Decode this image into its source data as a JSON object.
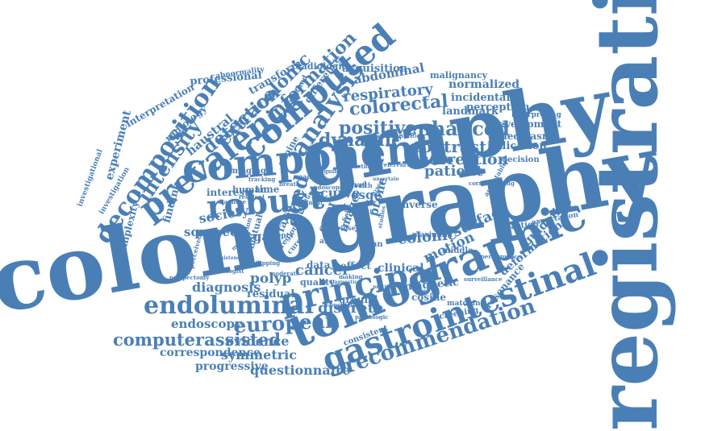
{
  "palette": {
    "word_color": "#4a7fb6",
    "background": "#ffffff"
  },
  "words": [
    {
      "id": "colonography",
      "text": "colonography",
      "rank": "largest"
    },
    {
      "id": "registration",
      "text": "registration",
      "rank": "largest"
    },
    {
      "id": "graphy",
      "text": "graphy",
      "rank": "large"
    },
    {
      "id": "component",
      "text": "component",
      "rank": "large"
    },
    {
      "id": "tomographic",
      "text": "tomographic",
      "rank": "large"
    },
    {
      "id": "principal",
      "text": "principal",
      "rank": "large"
    },
    {
      "id": "gastrointestinal",
      "text": "gastrointestinal",
      "rank": "large"
    },
    {
      "id": "endoluminal",
      "text": "endoluminal",
      "rank": "large"
    },
    {
      "id": "computed",
      "text": "computed",
      "rank": "large"
    },
    {
      "id": "prevalence",
      "text": "prevalence",
      "rank": "large"
    },
    {
      "id": "robust",
      "text": "robust",
      "rank": "large"
    },
    {
      "id": "analysis",
      "text": "analysis",
      "rank": "medium"
    },
    {
      "id": "decomposition",
      "text": "decomposition",
      "rank": "medium"
    },
    {
      "id": "european",
      "text": "european",
      "rank": "medium"
    },
    {
      "id": "recommendation",
      "text": "recommendation",
      "rank": "medium"
    },
    {
      "id": "computerassisted",
      "text": "computerassisted",
      "rank": "medium"
    },
    {
      "id": "dynamic",
      "text": "dynamic",
      "rank": "medium"
    },
    {
      "id": "colorectal",
      "text": "colorectal",
      "rank": "medium"
    },
    {
      "id": "positive",
      "text": "positive",
      "rank": "medium"
    },
    {
      "id": "enhanced",
      "text": "enhanced",
      "rank": "medium"
    },
    {
      "id": "contrast",
      "text": "contrast",
      "rank": "medium"
    },
    {
      "id": "correction",
      "text": "correction",
      "rank": "medium"
    },
    {
      "id": "patient",
      "text": "patient",
      "rank": "medium"
    },
    {
      "id": "intensity",
      "text": "intensity",
      "rank": "medium"
    },
    {
      "id": "detection",
      "text": "detection",
      "rank": "medium"
    },
    {
      "id": "extracolonic",
      "text": "extracolonic",
      "rank": "medium"
    },
    {
      "id": "information",
      "text": "information",
      "rank": "medium"
    },
    {
      "id": "respiratory",
      "text": "respiratory",
      "rank": "medium"
    },
    {
      "id": "abdominal",
      "text": "abdominal",
      "rank": "small"
    },
    {
      "id": "normalized",
      "text": "normalized",
      "rank": "small"
    },
    {
      "id": "incidental",
      "text": "incidental",
      "rank": "small"
    },
    {
      "id": "landmark",
      "text": "landmark",
      "rank": "small"
    },
    {
      "id": "perception",
      "text": "perception",
      "rank": "small"
    },
    {
      "id": "malignancy",
      "text": "malignancy",
      "rank": "small"
    },
    {
      "id": "acquisition",
      "text": "acquisition",
      "rank": "small"
    },
    {
      "id": "radiologic",
      "text": "radiologic",
      "rank": "small"
    },
    {
      "id": "difference",
      "text": "difference",
      "rank": "small"
    },
    {
      "id": "transform",
      "text": "transform",
      "rank": "small"
    },
    {
      "id": "haustral",
      "text": "haustral",
      "rank": "small"
    },
    {
      "id": "professional",
      "text": "professional",
      "rank": "small"
    },
    {
      "id": "abnormality",
      "text": "abnormality",
      "rank": "tiny"
    },
    {
      "id": "interpretation",
      "text": "interpretation",
      "rank": "small"
    },
    {
      "id": "radiology",
      "text": "radiology",
      "rank": "small"
    },
    {
      "id": "experiment",
      "text": "experiment",
      "rank": "small"
    },
    {
      "id": "investigational",
      "text": "investigational",
      "rank": "tiny"
    },
    {
      "id": "investigation",
      "text": "investigation",
      "rank": "tiny"
    },
    {
      "id": "complexity",
      "text": "complexity",
      "rank": "small"
    },
    {
      "id": "finding",
      "text": "finding",
      "rank": "small"
    },
    {
      "id": "society",
      "text": "society",
      "rank": "small"
    },
    {
      "id": "squared",
      "text": "squared",
      "rank": "small"
    },
    {
      "id": "interest",
      "text": "interest",
      "rank": "small"
    },
    {
      "id": "human",
      "text": "human",
      "rank": "small"
    },
    {
      "id": "time",
      "text": "time",
      "rank": "small"
    },
    {
      "id": "esgar",
      "text": "esgar",
      "rank": "small"
    },
    {
      "id": "false",
      "text": "false",
      "rank": "small"
    },
    {
      "id": "aged",
      "text": "aged",
      "rank": "medium"
    },
    {
      "id": "curve",
      "text": "curve",
      "rank": "small"
    },
    {
      "id": "esge",
      "text": "esge",
      "rank": "small"
    },
    {
      "id": "cancer",
      "text": "cancer",
      "rank": "medium"
    },
    {
      "id": "colonic",
      "text": "colonic",
      "rank": "medium"
    },
    {
      "id": "surface",
      "text": "surface",
      "rank": "medium"
    },
    {
      "id": "motion",
      "text": "motion",
      "rank": "medium"
    },
    {
      "id": "clinical",
      "text": "clinical",
      "rank": "small"
    },
    {
      "id": "magnetic",
      "text": "magnetic",
      "rank": "small"
    },
    {
      "id": "deformation",
      "text": "deformation",
      "rank": "small"
    },
    {
      "id": "guideline",
      "text": "guideline",
      "rank": "small"
    },
    {
      "id": "resonance",
      "text": "resonance",
      "rank": "small"
    },
    {
      "id": "reaction",
      "text": "reaction",
      "rank": "tiny"
    },
    {
      "id": "expectation",
      "text": "expectation",
      "rank": "tiny"
    },
    {
      "id": "indication",
      "text": "indication",
      "rank": "small"
    },
    {
      "id": "development",
      "text": "development",
      "rank": "small"
    },
    {
      "id": "neoplasm",
      "text": "neoplasm",
      "rank": "small"
    },
    {
      "id": "decision",
      "text": "decision",
      "rank": "tiny"
    },
    {
      "id": "interpreting",
      "text": "interpreting",
      "rank": "tiny"
    },
    {
      "id": "diagnosis",
      "text": "diagnosis",
      "rank": "medium"
    },
    {
      "id": "polyp",
      "text": "polyp",
      "rank": "medium"
    },
    {
      "id": "residual",
      "text": "residual",
      "rank": "small"
    },
    {
      "id": "data",
      "text": "data",
      "rank": "small"
    },
    {
      "id": "quality",
      "text": "quality",
      "rank": "small"
    },
    {
      "id": "effect",
      "text": "effect",
      "rank": "small"
    },
    {
      "id": "discrete",
      "text": "discrete",
      "rank": "medium"
    },
    {
      "id": "ground",
      "text": "ground",
      "rank": "small"
    },
    {
      "id": "endoscopy",
      "text": "endoscopy",
      "rank": "small"
    },
    {
      "id": "evidence",
      "text": "evidence",
      "rank": "small"
    },
    {
      "id": "symmetric",
      "text": "symmetric",
      "rank": "small"
    },
    {
      "id": "correspondence",
      "text": "correspondence",
      "rank": "small"
    },
    {
      "id": "progressive",
      "text": "progressive",
      "rank": "small"
    },
    {
      "id": "questionnaire",
      "text": "questionnaire",
      "rank": "small"
    },
    {
      "id": "consistent",
      "text": "consistent",
      "rank": "tiny"
    },
    {
      "id": "screening",
      "text": "screening",
      "rank": "tiny"
    },
    {
      "id": "matching",
      "text": "matching",
      "rank": "tiny"
    },
    {
      "id": "cosine",
      "text": "cosine",
      "rank": "small"
    },
    {
      "id": "inverse",
      "text": "inverse",
      "rank": "small"
    },
    {
      "id": "maximum",
      "text": "maximum",
      "rank": "tiny"
    },
    {
      "id": "middle",
      "text": "middle",
      "rank": "tiny"
    },
    {
      "id": "imaging",
      "text": "imaging",
      "rank": "tiny"
    },
    {
      "id": "supine",
      "text": "supine",
      "rank": "small"
    },
    {
      "id": "method",
      "text": "method",
      "rank": "tiny"
    },
    {
      "id": "mutual",
      "text": "mutual",
      "rank": "tiny"
    },
    {
      "id": "novel",
      "text": "novel",
      "rank": "tiny"
    },
    {
      "id": "error",
      "text": "error",
      "rank": "small"
    },
    {
      "id": "image",
      "text": "image",
      "rank": "small"
    },
    {
      "id": "prone",
      "text": "prone",
      "rank": "small"
    },
    {
      "id": "area",
      "text": "area",
      "rank": "tiny"
    },
    {
      "id": "mean",
      "text": "mean",
      "rank": "tiny"
    },
    {
      "id": "visual",
      "text": "visual",
      "rank": "tiny"
    },
    {
      "id": "reader",
      "text": "reader",
      "rank": "tiny"
    },
    {
      "id": "significant",
      "text": "significant",
      "rank": "tiny"
    },
    {
      "id": "reduction",
      "text": "reduction",
      "rank": "tiny"
    },
    {
      "id": "reference",
      "text": "reference",
      "rank": "tiny"
    },
    {
      "id": "technique",
      "text": "technique",
      "rank": "tiny"
    },
    {
      "id": "identification",
      "text": "identification",
      "rank": "tiny"
    },
    {
      "id": "corresponding",
      "text": "corresponding",
      "rank": "tiny"
    },
    {
      "id": "health",
      "text": "health",
      "rank": "tiny"
    },
    {
      "id": "strong",
      "text": "strong",
      "rank": "tiny"
    },
    {
      "id": "diagnose",
      "text": "diagnose",
      "rank": "tiny"
    },
    {
      "id": "rate",
      "text": "rate",
      "rank": "tiny"
    },
    {
      "id": "rinse",
      "text": "rinse",
      "rank": "tiny"
    },
    {
      "id": "field",
      "text": "field",
      "rank": "tiny"
    },
    {
      "id": "truth",
      "text": "truth",
      "rank": "tiny"
    },
    {
      "id": "region",
      "text": "region",
      "rank": "tiny"
    },
    {
      "id": "application",
      "text": "application",
      "rank": "tiny"
    },
    {
      "id": "medical",
      "text": "medical",
      "rank": "tiny"
    },
    {
      "id": "flipping",
      "text": "flipping",
      "rank": "tiny"
    },
    {
      "id": "moderate",
      "text": "moderate",
      "rank": "tiny"
    },
    {
      "id": "perceived",
      "text": "perceived",
      "rank": "tiny"
    },
    {
      "id": "polypectomy",
      "text": "polypectomy",
      "rank": "tiny"
    },
    {
      "id": "radiologist",
      "text": "radiologist",
      "rank": "tiny"
    },
    {
      "id": "consistency",
      "text": "consistency",
      "rank": "tiny"
    },
    {
      "id": "making",
      "text": "making",
      "rank": "tiny"
    },
    {
      "id": "conclusion",
      "text": "conclusion",
      "rank": "tiny"
    },
    {
      "id": "pathologic",
      "text": "pathologic",
      "rank": "tiny"
    },
    {
      "id": "practice",
      "text": "practice",
      "rank": "tiny"
    },
    {
      "id": "surveillance",
      "text": "surveillance",
      "rank": "tiny"
    },
    {
      "id": "performance",
      "text": "performance",
      "rank": "tiny"
    },
    {
      "id": "acceptable",
      "text": "acceptable",
      "rank": "tiny"
    },
    {
      "id": "tracking",
      "text": "tracking",
      "rank": "tiny"
    },
    {
      "id": "curvature",
      "text": "curvature",
      "rank": "tiny"
    },
    {
      "id": "endoscopic",
      "text": "endoscopic",
      "rank": "tiny"
    },
    {
      "id": "diagnostic",
      "text": "diagnostic",
      "rank": "tiny"
    },
    {
      "id": "ppcr",
      "text": "ppcr",
      "rank": "tiny"
    },
    {
      "id": "resident",
      "text": "resident",
      "rank": "tiny"
    },
    {
      "id": "benefit",
      "text": "benefit",
      "rank": "tiny"
    },
    {
      "id": "breath",
      "text": "breath",
      "rank": "tiny"
    },
    {
      "id": "studies",
      "text": "studies",
      "rank": "tiny"
    },
    {
      "id": "uncertain",
      "text": "uncertain",
      "rank": "tiny"
    },
    {
      "id": "cure",
      "text": "cure",
      "rank": "tiny"
    }
  ]
}
